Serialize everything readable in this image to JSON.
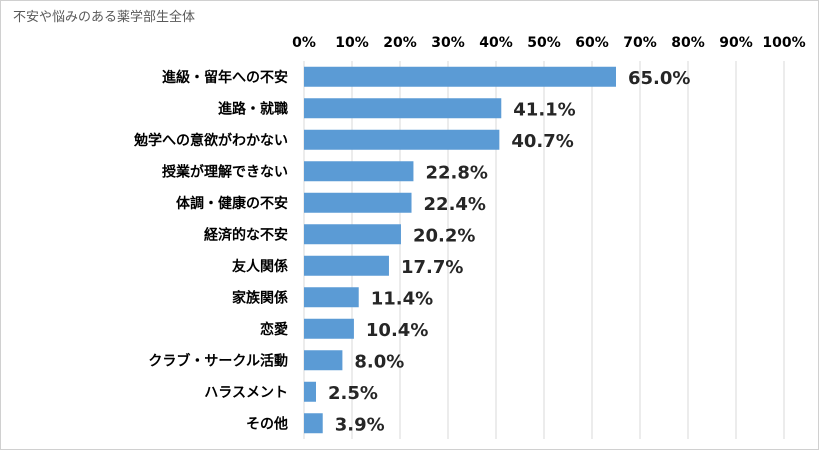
{
  "chart_data": {
    "type": "bar",
    "orientation": "horizontal",
    "title": "不安や悩みのある薬学部生全体",
    "categories": [
      "進級・留年への不安",
      "進路・就職",
      "勉学への意欲がわかない",
      "授業が理解できない",
      "体調・健康の不安",
      "経済的な不安",
      "友人関係",
      "家族関係",
      "恋愛",
      "クラブ・サークル活動",
      "ハラスメント",
      "その他"
    ],
    "values": [
      65.0,
      41.1,
      40.7,
      22.8,
      22.4,
      20.2,
      17.7,
      11.4,
      10.4,
      8.0,
      2.5,
      3.9
    ],
    "value_labels": [
      "65.0%",
      "41.1%",
      "40.7%",
      "22.8%",
      "22.4%",
      "20.2%",
      "17.7%",
      "11.4%",
      "10.4%",
      "8.0%",
      "2.5%",
      "3.9%"
    ],
    "x_ticks": [
      "0%",
      "10%",
      "20%",
      "30%",
      "40%",
      "50%",
      "60%",
      "70%",
      "80%",
      "90%",
      "100%"
    ],
    "xlim": [
      0,
      100
    ],
    "x_axis_position": "top",
    "grid": true,
    "legend": "none",
    "colors": {
      "bar": "#5b9bd5",
      "grid": "#d9d9d9"
    }
  }
}
